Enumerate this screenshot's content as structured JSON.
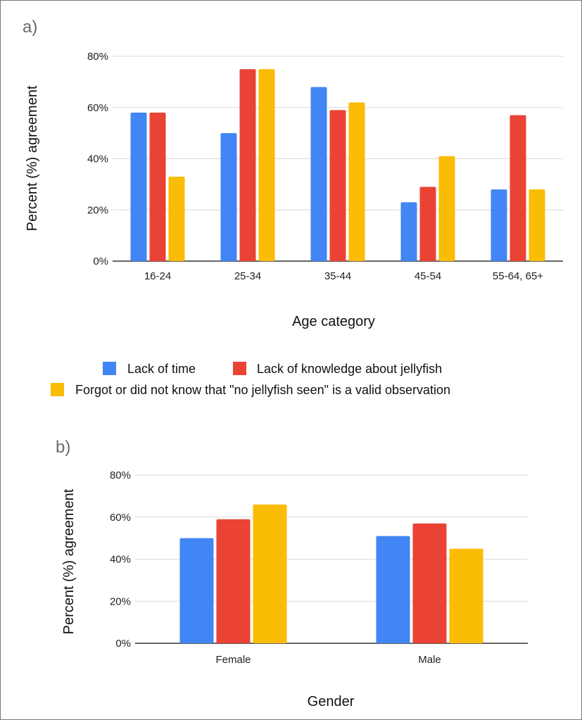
{
  "chart_data": [
    {
      "type": "bar",
      "panel_label": "a)",
      "categories": [
        "16-24",
        "25-34",
        "35-44",
        "45-54",
        "55-64, 65+"
      ],
      "series": [
        {
          "name": "Lack of time",
          "color": "#4285F4",
          "values": [
            58,
            50,
            68,
            23,
            28
          ]
        },
        {
          "name": "Lack of knowledge about jellyfish",
          "color": "#EA4335",
          "values": [
            58,
            75,
            59,
            29,
            57
          ]
        },
        {
          "name": "Forgot or did not know that \"no jellyfish seen\" is a valid observation",
          "color": "#FBBC04",
          "values": [
            33,
            75,
            62,
            41,
            28
          ]
        }
      ],
      "xlabel": "Age category",
      "ylabel": "Percent (%) agreement",
      "ylim": [
        0,
        80
      ],
      "yticks": [
        "0%",
        "20%",
        "40%",
        "60%",
        "80%"
      ],
      "grid": true,
      "legend": "bottom"
    },
    {
      "type": "bar",
      "panel_label": "b)",
      "categories": [
        "Female",
        "Male"
      ],
      "series": [
        {
          "name": "Lack of time",
          "color": "#4285F4",
          "values": [
            50,
            51
          ]
        },
        {
          "name": "Lack of knowledge about jellyfish",
          "color": "#EA4335",
          "values": [
            59,
            57
          ]
        },
        {
          "name": "Forgot or did not know that \"no jellyfish seen\" is a valid observation",
          "color": "#FBBC04",
          "values": [
            66,
            45
          ]
        }
      ],
      "xlabel": "Gender",
      "ylabel": "Percent (%) agreement",
      "ylim": [
        0,
        80
      ],
      "yticks": [
        "0%",
        "20%",
        "40%",
        "60%",
        "80%"
      ],
      "grid": true
    }
  ]
}
